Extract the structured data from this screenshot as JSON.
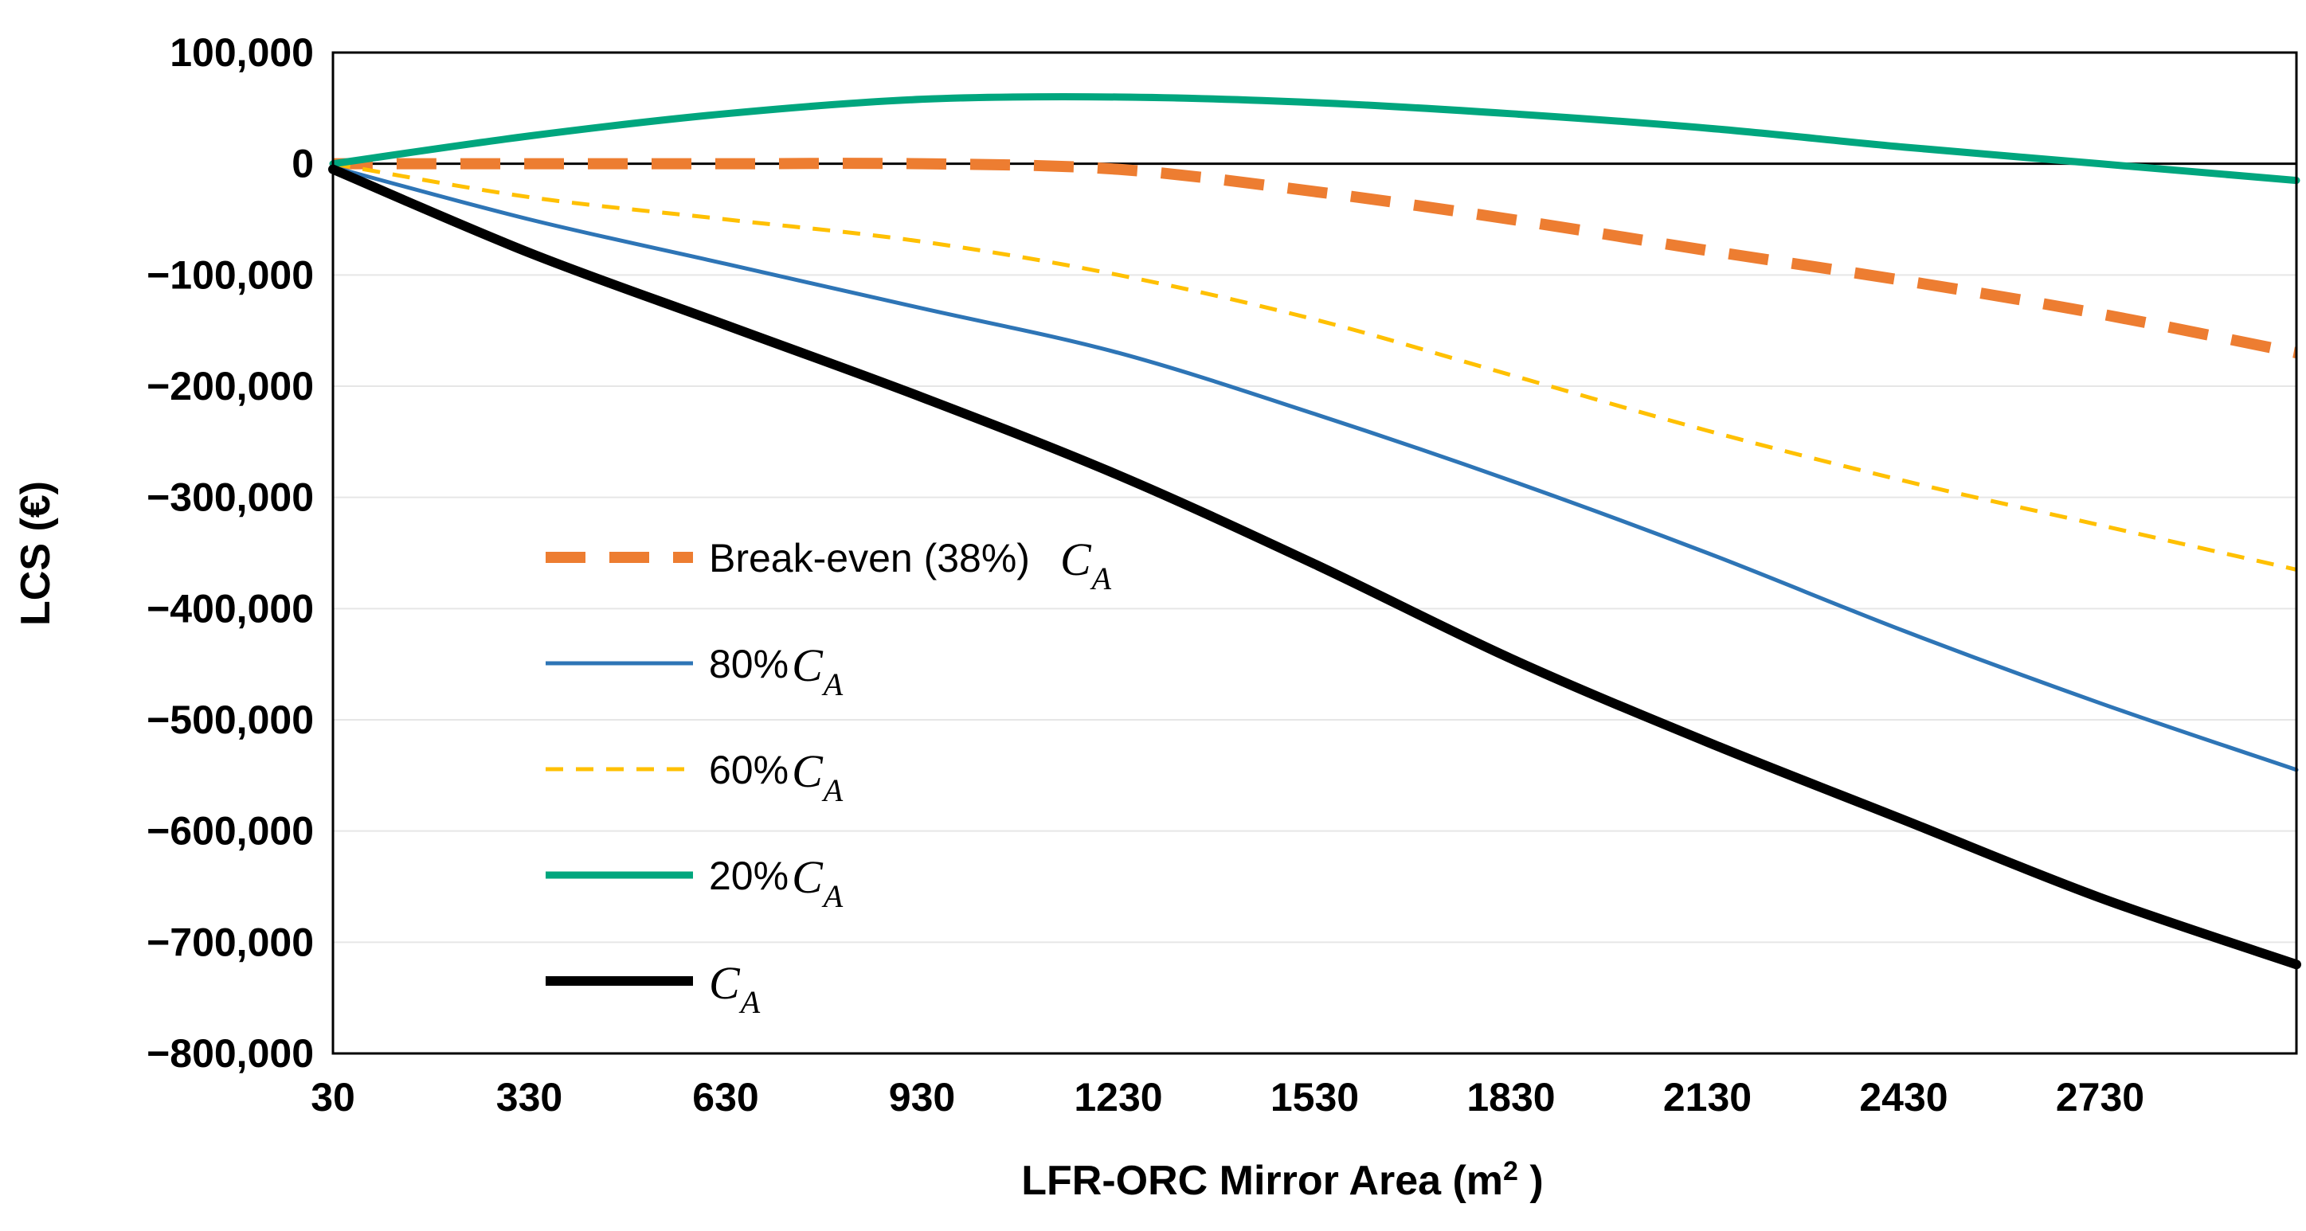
{
  "chart_data": {
    "type": "line",
    "title": "",
    "xlabel": "LFR-ORC Mirror Area (m",
    "xlabel_sup": "2",
    "xlabel_close": " )",
    "ylabel": "LCS (€)",
    "xlim": [
      30,
      3030
    ],
    "ylim": [
      -800000,
      100000
    ],
    "x_ticks": [
      "30",
      "330",
      "630",
      "930",
      "1230",
      "1530",
      "1830",
      "2130",
      "2430",
      "2730"
    ],
    "y_ticks": [
      "100,000",
      "0",
      "−100,000",
      "−200,000",
      "−300,000",
      "−400,000",
      "−500,000",
      "−600,000",
      "−700,000",
      "−800,000"
    ],
    "grid": true,
    "legend_position": "inside-left",
    "x": [
      30,
      330,
      630,
      930,
      1230,
      1530,
      1830,
      2130,
      2430,
      2730,
      3030
    ],
    "series": [
      {
        "name": "Break-even (38%)",
        "math": "C",
        "sub": "A",
        "color": "#ED7D31",
        "style": "long-dash-thick",
        "values": [
          0,
          0,
          0,
          0,
          -5000,
          -25000,
          -50000,
          -78000,
          -105000,
          -135000,
          -170000
        ]
      },
      {
        "name": "80%",
        "math": "C",
        "sub": "A",
        "color": "#2E75B6",
        "style": "solid-thin",
        "values": [
          -3000,
          -50000,
          -90000,
          -130000,
          -170000,
          -225000,
          -285000,
          -350000,
          -420000,
          -485000,
          -545000
        ]
      },
      {
        "name": "60%",
        "math": "C",
        "sub": "A",
        "color": "#FFC000",
        "style": "dash-thin",
        "values": [
          0,
          -30000,
          -50000,
          -70000,
          -100000,
          -140000,
          -190000,
          -240000,
          -285000,
          -325000,
          -365000
        ]
      },
      {
        "name": "20%",
        "math": "C",
        "sub": "A",
        "color": "#00A67E",
        "style": "solid-medium",
        "values": [
          0,
          25000,
          45000,
          58000,
          60000,
          55000,
          45000,
          32000,
          15000,
          0,
          -15000
        ]
      },
      {
        "name": "",
        "math": "C",
        "sub": "A",
        "color": "#000000",
        "style": "solid-thick",
        "values": [
          -5000,
          -80000,
          -145000,
          -210000,
          -280000,
          -360000,
          -445000,
          -520000,
          -590000,
          -660000,
          -720000
        ]
      }
    ]
  }
}
